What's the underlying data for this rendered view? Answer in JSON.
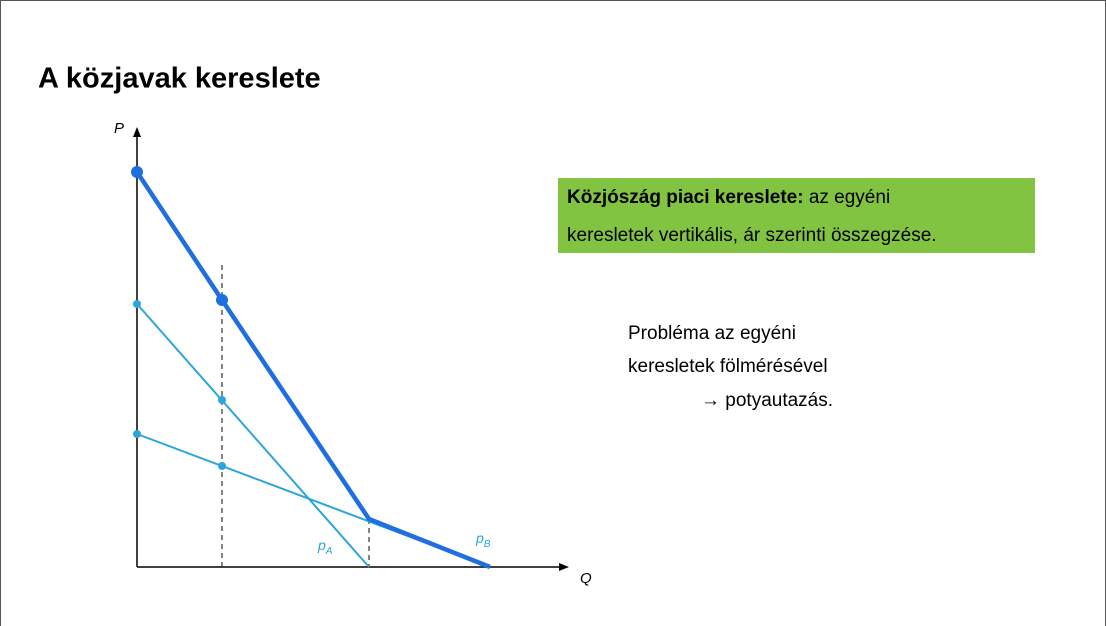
{
  "header": {
    "title": "A közjavak kereslete"
  },
  "diagram": {
    "y_axis_label": "P",
    "x_axis_label": "Q",
    "curves": [
      {
        "label": "p",
        "subscript": "A"
      },
      {
        "label": "p",
        "subscript": "B"
      }
    ]
  },
  "callout": {
    "bold": "Közjószág piaci kereslete:",
    "text_line1": " az egyéni",
    "text_line2": "keresletek vertikális, ár szerinti összegzése."
  },
  "note": {
    "lines": [
      "Probléma az egyéni",
      "keresletek fölmérésével",
      "→ potyautazás."
    ]
  }
}
